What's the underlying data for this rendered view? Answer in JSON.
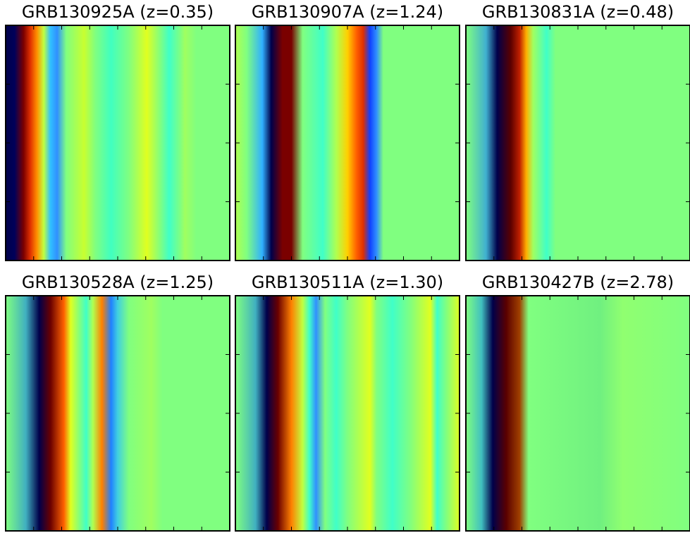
{
  "panels": [
    {
      "title": "GRB130925A (z=0.35)"
    },
    {
      "title": "GRB130907A (z=1.24)"
    },
    {
      "title": "GRB130831A (z=0.48)"
    },
    {
      "title": "GRB130528A (z=1.25)"
    },
    {
      "title": "GRB130511A (z=1.30)"
    },
    {
      "title": "GRB130427B (z=2.78)"
    }
  ]
}
